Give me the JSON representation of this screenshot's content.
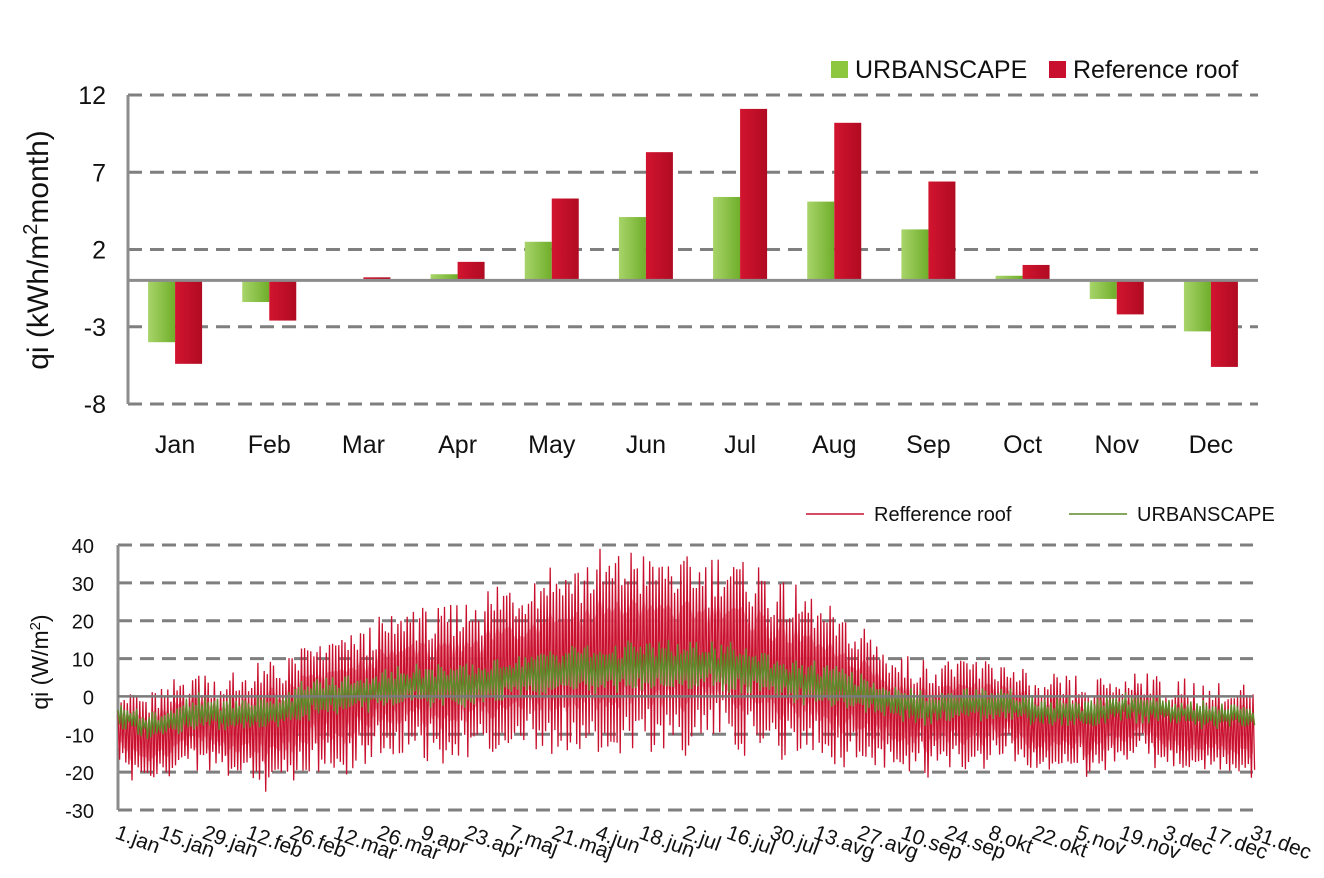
{
  "chart_data": [
    {
      "type": "bar",
      "title": "",
      "ylabel_main": "qi  (kWh/m",
      "ylabel_sup": "2",
      "ylabel_tail": "month)",
      "xlabel": "",
      "ylim": [
        -8,
        12
      ],
      "yticks": [
        12,
        7,
        2,
        -3,
        -8
      ],
      "grid": true,
      "legend_position": "top-right",
      "categories": [
        "Jan",
        "Feb",
        "Mar",
        "Apr",
        "May",
        "Jun",
        "Jul",
        "Aug",
        "Sep",
        "Oct",
        "Nov",
        "Dec"
      ],
      "series": [
        {
          "name": "URBANSCAPE",
          "color": "#8dc63f",
          "values": [
            -4.0,
            -1.4,
            0.0,
            0.4,
            2.5,
            4.1,
            5.4,
            5.1,
            3.3,
            0.3,
            -1.2,
            -3.3
          ]
        },
        {
          "name": "Reference roof",
          "color": "#c8102e",
          "values": [
            -5.4,
            -2.6,
            0.2,
            1.2,
            5.3,
            8.3,
            11.1,
            10.2,
            6.4,
            1.0,
            -2.2,
            -5.6
          ]
        }
      ]
    },
    {
      "type": "line",
      "title": "",
      "ylabel_main": "qi (W/m",
      "ylabel_sup": "2",
      "ylabel_tail": ")",
      "xlabel": "",
      "ylim": [
        -30,
        40
      ],
      "yticks": [
        40,
        30,
        20,
        10,
        0,
        -10,
        -20,
        -30
      ],
      "grid": true,
      "legend_position": "top-right",
      "x_tick_labels": [
        "1.jan",
        "15.jan",
        "29.jan",
        "12.feb",
        "26.feb",
        "12.mar",
        "26.mar",
        "9.apr",
        "23.apr",
        "7.maj",
        "21.maj",
        "4.jun",
        "18.jun",
        "2.jul",
        "16.jul",
        "30.jul",
        "13.avg",
        "27.avg",
        "10.sep",
        "24.sep",
        "8.okt",
        "22.okt",
        "5.nov",
        "19.nov",
        "3.dec",
        "17.dec",
        "31.dec"
      ],
      "series": [
        {
          "name": "Refference roof",
          "color": "#c8102e",
          "band_color": "#f29aa8",
          "daily_mean": [
            -9,
            -11,
            -9,
            -6,
            -8,
            -8,
            -7,
            -3,
            -2,
            0,
            3,
            4,
            3,
            4,
            6,
            8,
            10,
            10,
            11,
            12,
            12,
            11,
            12,
            10,
            9,
            6,
            4,
            1,
            -2,
            -4,
            -6,
            -3,
            -4,
            -4,
            -8,
            -7,
            -9,
            -6,
            -5,
            -8,
            -9,
            -9,
            -9
          ],
          "daily_swing": [
            9,
            9,
            9,
            10,
            10,
            12,
            13,
            13,
            14,
            14,
            14,
            16,
            15,
            17,
            18,
            19,
            21,
            20,
            21,
            21,
            20,
            20,
            19,
            20,
            19,
            17,
            16,
            15,
            14,
            12,
            12,
            11,
            11,
            10,
            9,
            9,
            9,
            9,
            9,
            9,
            9,
            9,
            9
          ]
        },
        {
          "name": "URBANSCAPE",
          "color": "#5d8a2b",
          "daily_mean": [
            -5,
            -8,
            -6,
            -4,
            -5,
            -4,
            -4,
            -1,
            0,
            1,
            2,
            3,
            3,
            3,
            4,
            5,
            6,
            7,
            7,
            8,
            8,
            8,
            8,
            7,
            6,
            4,
            3,
            2,
            0,
            -2,
            -3,
            -2,
            -2,
            -2,
            -4,
            -4,
            -5,
            -3,
            -3,
            -4,
            -5,
            -5,
            -5
          ],
          "daily_swing": [
            2.5,
            2.5,
            2.5,
            3,
            3,
            3,
            3.5,
            3.5,
            3.5,
            3.5,
            3.5,
            4,
            4,
            4,
            4,
            4,
            4.5,
            4.5,
            4.5,
            4.5,
            4.5,
            4.5,
            4.5,
            4.5,
            4,
            4,
            4,
            3.5,
            3.5,
            3,
            3,
            3,
            3,
            3,
            2.5,
            2.5,
            2.5,
            2.5,
            2.5,
            2.5,
            2.5,
            2.5,
            2.5
          ]
        }
      ]
    }
  ]
}
